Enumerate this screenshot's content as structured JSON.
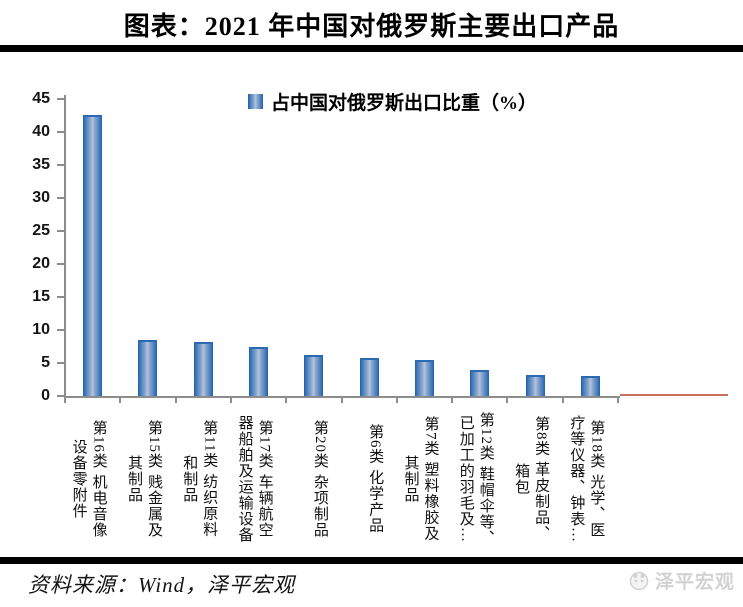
{
  "title": "图表：2021 年中国对俄罗斯主要出口产品",
  "legend": {
    "label": "占中国对俄罗斯出口比重（%）",
    "swatch_color_edge": "#1f5fae",
    "swatch_color_center": "#b3c4dc"
  },
  "source_line": "资料来源：Wind，泽平宏观",
  "watermark": {
    "label": "泽平宏观",
    "icon": "panda-logo-icon",
    "color": "#d2d2d2"
  },
  "colors": {
    "bar_edge": "#1f5fae",
    "bar_center": "#b3c4dc",
    "axis_gray": "#8c8c8c",
    "rule_black": "#000000",
    "accent_red_line": "#c96f5e"
  },
  "chart_data": {
    "type": "bar",
    "title": "图表：2021 年中国对俄罗斯主要出口产品",
    "legend_entries": [
      "占中国对俄罗斯出口比重（%）"
    ],
    "legend_position": "top-center",
    "grid": false,
    "xlabel": "",
    "ylabel": "",
    "ylim": [
      0,
      45
    ],
    "ytick_step": 5,
    "categories": [
      "第16类 机电音像\n设备零附件",
      "第15类 贱金属及\n其制品",
      "第11类 纺织原料\n和制品",
      "第17类 车辆航空\n器船舶及运输设备",
      "第20类 杂项制品",
      "第6类 化学产品",
      "第7类 塑料橡胶及\n其制品",
      "第12类 鞋帽伞等、\n已加工的羽毛及…",
      "第8类 革皮制品、\n箱包",
      "第18类 光学、医\n疗等仪器、钟表…"
    ],
    "values": [
      42.6,
      8.5,
      8.2,
      7.5,
      6.2,
      5.7,
      5.4,
      3.9,
      3.2,
      3.0
    ]
  }
}
